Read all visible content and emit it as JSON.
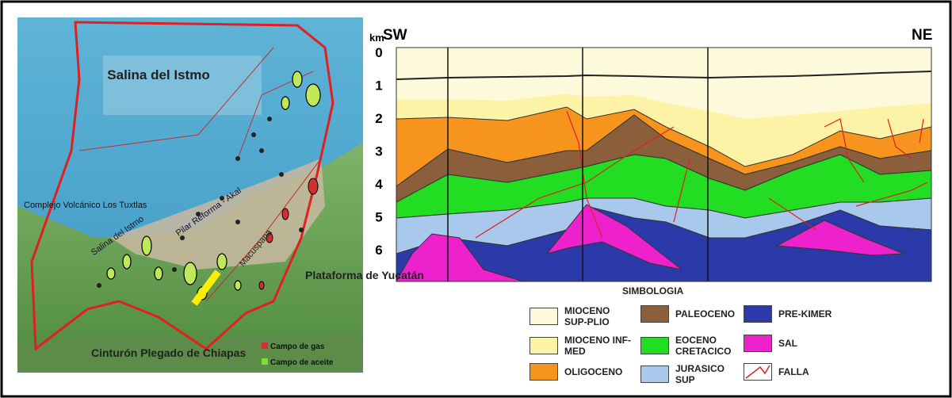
{
  "map": {
    "labels": [
      "Salina del Istmo",
      "Complejo Volcánico Los Tuxtlas",
      "Salina del Istmo",
      "Pilar Reforma - Akal",
      "Macuspana",
      "Plataforma de Yucatán",
      "Cinturón Plegado de Chiapas",
      "Campo de gas",
      "Campo de aceite"
    ]
  },
  "section": {
    "axis_unit": "km",
    "depth_labels": [
      "0",
      "1",
      "2",
      "3",
      "4",
      "5",
      "6"
    ],
    "left_label": "SW",
    "right_label": "NE"
  },
  "legend": {
    "title": "SIMBOLOGIA",
    "items": [
      {
        "label": "MIOCENO SUP-PLIO",
        "color": "#fdfadc"
      },
      {
        "label": "MIOCENO INF-MED",
        "color": "#fdf3a6"
      },
      {
        "label": "OLIGOCENO",
        "color": "#f7941d"
      },
      {
        "label": "PALEOCENO",
        "color": "#8b5e3c"
      },
      {
        "label": "EOCENO CRETACICO",
        "color": "#22dd22"
      },
      {
        "label": "JURASICO SUP",
        "color": "#a8c8ec"
      },
      {
        "label": "PRE-KIMER",
        "color": "#2b3aa8"
      },
      {
        "label": "SAL",
        "color": "#ee22cc"
      },
      {
        "label": "FALLA",
        "color": "#e02020"
      }
    ]
  }
}
